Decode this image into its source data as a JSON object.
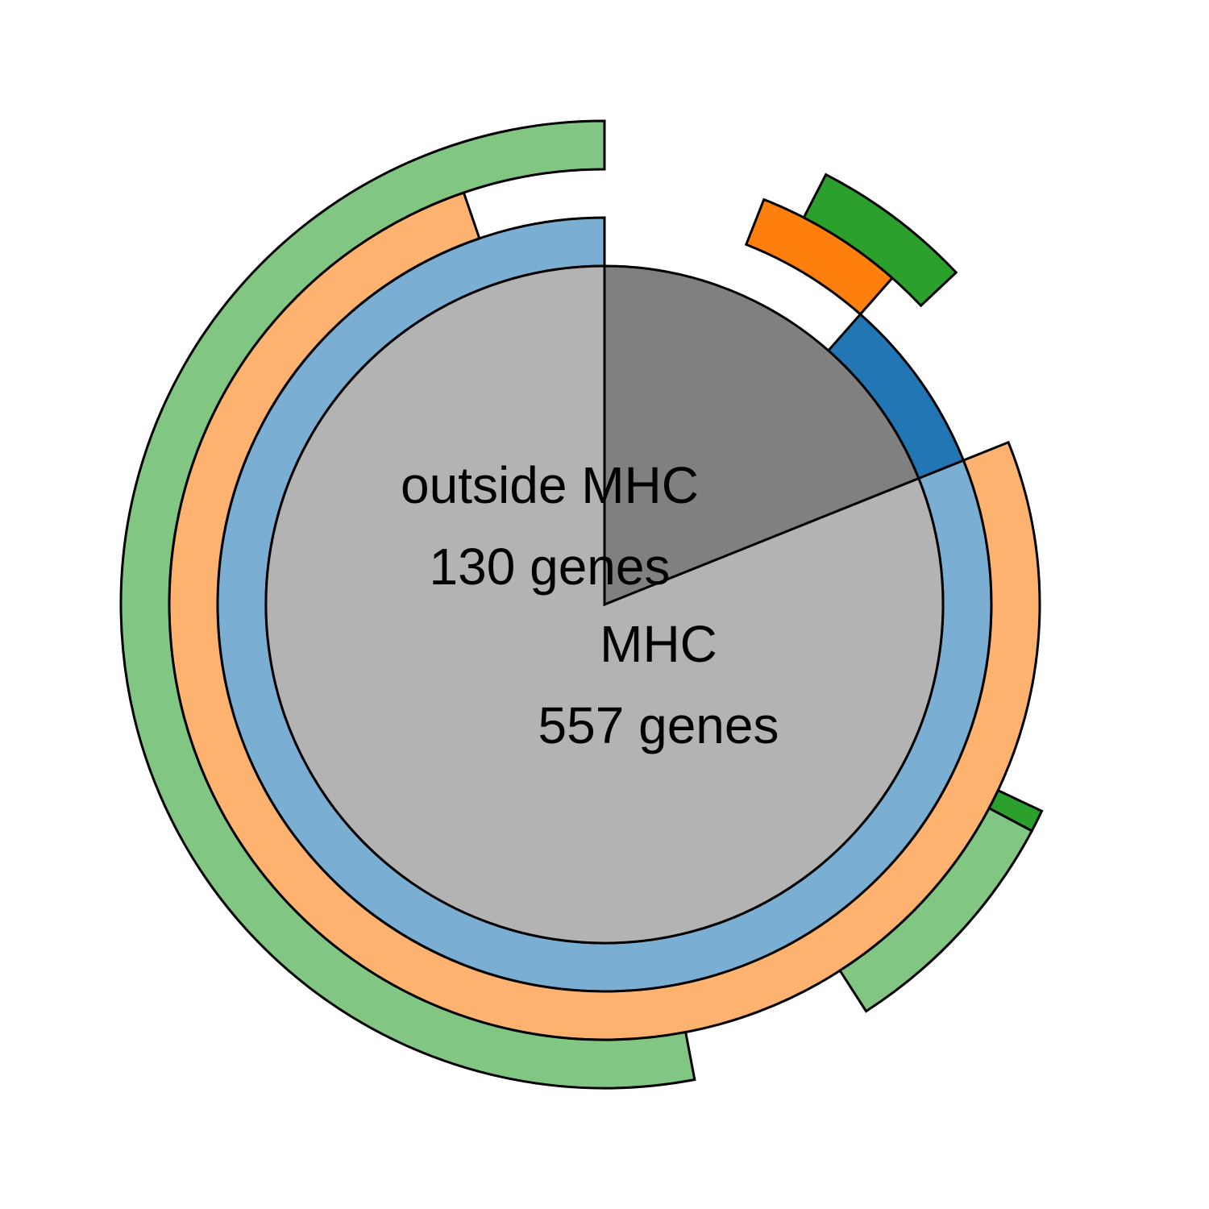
{
  "chart_data": {
    "type": "pie",
    "title": "",
    "start": "12 o'clock",
    "direction": "counterclockwise",
    "center": {
      "slices": [
        {
          "label": "MHC",
          "value_label": "557 genes",
          "value": 557,
          "color": "#b3b3b3"
        },
        {
          "label": "outside MHC",
          "value_label": "130 genes",
          "value": 130,
          "color": "#808080"
        }
      ]
    },
    "rings": [
      {
        "segments": [
          {
            "parent": "MHC",
            "value": 557,
            "color": "#7aaed3"
          },
          {
            "parent": "outside MHC",
            "value": 51,
            "color": "#2276b4"
          },
          {
            "parent": "outside MHC",
            "value": 79,
            "color": null
          }
        ]
      },
      {
        "segments": [
          {
            "parent": "MHC",
            "value": 36,
            "color": null
          },
          {
            "parent": "MHC",
            "value": 521,
            "color": "#feb270"
          },
          {
            "parent": "outside MHC",
            "value": 51,
            "color": null
          },
          {
            "parent": "outside MHC",
            "value": 38,
            "color": "#fe7f0e"
          },
          {
            "parent": "outside MHC",
            "value": 41,
            "color": null
          }
        ]
      },
      {
        "segments": [
          {
            "parent": "MHC",
            "value": 364,
            "color": "#82c684"
          },
          {
            "parent": "MHC",
            "value": 42,
            "color": null
          },
          {
            "parent": "MHC",
            "value": 56,
            "color": "#82c684"
          },
          {
            "parent": "MHC",
            "value": 5,
            "color": "#2ca02c"
          },
          {
            "parent": "MHC",
            "value": 90,
            "color": null
          },
          {
            "parent": "outside MHC",
            "value": 41,
            "color": null
          },
          {
            "parent": "outside MHC",
            "value": 37,
            "color": "#2ca02c"
          },
          {
            "parent": "outside MHC",
            "value": 52,
            "color": null
          }
        ]
      }
    ]
  }
}
